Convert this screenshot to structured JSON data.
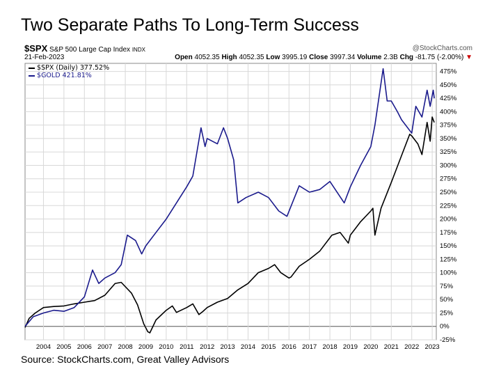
{
  "slide": {
    "title": "Two Separate Paths To Long-Term Success",
    "source": "Source: StockCharts.com, Great Valley Advisors"
  },
  "header": {
    "symbol": "$SPX",
    "description": "S&P 500 Large Cap Index",
    "exchange": "INDX",
    "brand": "@StockCharts.com",
    "date": "21-Feb-2023",
    "open_label": "Open",
    "open": "4052.35",
    "high_label": "High",
    "high": "4052.35",
    "low_label": "Low",
    "low": "3995.19",
    "close_label": "Close",
    "close": "3997.34",
    "volume_label": "Volume",
    "volume": "2.3B",
    "chg_label": "Chg",
    "chg": "-81.75 (-2.00%)",
    "chg_marker": "▼"
  },
  "legend": [
    {
      "text": "$SPX (Daily) 377.52%",
      "color": "#000000"
    },
    {
      "text": "$GOLD 421.81%",
      "color": "#1a1a8c"
    }
  ],
  "chart_data": {
    "type": "line",
    "x_ticks": [
      "2004",
      "2005",
      "2006",
      "2007",
      "2008",
      "2009",
      "2010",
      "2011",
      "2012",
      "2013",
      "2014",
      "2015",
      "2016",
      "2017",
      "2018",
      "2019",
      "2020",
      "2021",
      "2022",
      "2023"
    ],
    "y_ticks": [
      "475%",
      "450%",
      "425%",
      "400%",
      "375%",
      "350%",
      "325%",
      "300%",
      "275%",
      "250%",
      "225%",
      "200%",
      "175%",
      "150%",
      "125%",
      "100%",
      "75%",
      "50%",
      "25%",
      "0%",
      "-25%"
    ],
    "xlim": [
      2003.1,
      2023.2
    ],
    "ylim": [
      -25,
      490
    ],
    "grid": true,
    "series": [
      {
        "name": "$SPX (Daily) 377.52%",
        "color": "#000000",
        "x": [
          2003.1,
          2003.3,
          2003.6,
          2004.0,
          2004.5,
          2005.0,
          2005.5,
          2006.0,
          2006.5,
          2007.0,
          2007.5,
          2007.8,
          2008.3,
          2008.6,
          2008.9,
          2009.1,
          2009.2,
          2009.5,
          2010.0,
          2010.3,
          2010.5,
          2011.0,
          2011.3,
          2011.6,
          2011.8,
          2012.0,
          2012.5,
          2013.0,
          2013.5,
          2014.0,
          2014.5,
          2015.0,
          2015.3,
          2015.6,
          2016.0,
          2016.1,
          2016.5,
          2017.0,
          2017.5,
          2018.0,
          2018.1,
          2018.5,
          2018.9,
          2019.0,
          2019.5,
          2020.0,
          2020.1,
          2020.2,
          2020.5,
          2021.0,
          2021.5,
          2021.9,
          2022.0,
          2022.3,
          2022.5,
          2022.75,
          2022.9,
          2023.0,
          2023.1
        ],
        "y": [
          -2,
          15,
          25,
          35,
          37,
          38,
          42,
          45,
          48,
          58,
          80,
          82,
          62,
          40,
          5,
          -10,
          -12,
          12,
          30,
          38,
          26,
          35,
          42,
          22,
          28,
          35,
          45,
          52,
          68,
          80,
          100,
          108,
          115,
          100,
          90,
          92,
          112,
          125,
          140,
          165,
          170,
          175,
          155,
          170,
          195,
          215,
          220,
          170,
          220,
          268,
          318,
          358,
          355,
          340,
          320,
          380,
          345,
          390,
          380
        ]
      },
      {
        "name": "$GOLD 421.81%",
        "color": "#1a1a8c",
        "x": [
          2003.1,
          2003.5,
          2004.0,
          2004.5,
          2005.0,
          2005.5,
          2006.0,
          2006.4,
          2006.7,
          2007.0,
          2007.5,
          2007.8,
          2008.1,
          2008.5,
          2008.8,
          2009.0,
          2009.5,
          2010.0,
          2010.5,
          2011.0,
          2011.3,
          2011.7,
          2011.9,
          2012.0,
          2012.5,
          2012.8,
          2013.0,
          2013.3,
          2013.5,
          2013.9,
          2014.5,
          2015.0,
          2015.5,
          2015.9,
          2016.5,
          2017.0,
          2017.5,
          2018.0,
          2018.7,
          2019.0,
          2019.5,
          2020.0,
          2020.2,
          2020.6,
          2020.8,
          2021.0,
          2021.3,
          2021.5,
          2022.0,
          2022.2,
          2022.5,
          2022.75,
          2022.9,
          2023.05,
          2023.1
        ],
        "y": [
          0,
          18,
          25,
          30,
          28,
          35,
          55,
          105,
          80,
          90,
          100,
          115,
          170,
          160,
          135,
          150,
          175,
          200,
          230,
          260,
          280,
          370,
          335,
          350,
          340,
          370,
          350,
          310,
          230,
          240,
          250,
          240,
          215,
          205,
          262,
          250,
          255,
          270,
          230,
          260,
          300,
          335,
          375,
          480,
          420,
          420,
          400,
          385,
          360,
          410,
          390,
          440,
          410,
          440,
          425
        ]
      }
    ]
  }
}
